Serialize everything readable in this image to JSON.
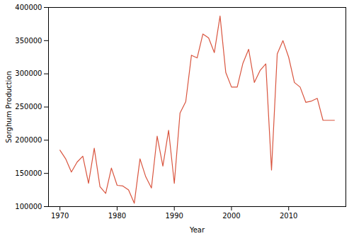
{
  "chart_data": {
    "type": "line",
    "x_label": "Year",
    "y_label": "Sorghum Production",
    "x": [
      1970,
      1971,
      1972,
      1973,
      1974,
      1975,
      1976,
      1977,
      1978,
      1979,
      1980,
      1981,
      1982,
      1983,
      1984,
      1985,
      1986,
      1987,
      1988,
      1989,
      1990,
      1991,
      1992,
      1993,
      1994,
      1995,
      1996,
      1997,
      1998,
      1999,
      2000,
      2001,
      2002,
      2003,
      2004,
      2005,
      2006,
      2007,
      2008,
      2009,
      2010,
      2011,
      2012,
      2013,
      2014,
      2015,
      2016,
      2017,
      2018
    ],
    "values": [
      185000,
      172000,
      152000,
      167000,
      176000,
      135000,
      188000,
      130000,
      120000,
      158000,
      132000,
      131000,
      125000,
      105000,
      172000,
      145000,
      128000,
      206000,
      161000,
      215000,
      135000,
      241000,
      258000,
      328000,
      324000,
      360000,
      354000,
      332000,
      387000,
      302000,
      280000,
      280000,
      316000,
      337000,
      287000,
      305000,
      315000,
      155000,
      330000,
      350000,
      325000,
      287000,
      280000,
      257000,
      259000,
      263000,
      230000,
      230000,
      230000
    ],
    "color": "#d9553f",
    "xlim": [
      1968,
      2020
    ],
    "xticks": [
      1970,
      1980,
      1990,
      2000,
      2010
    ],
    "ylim": [
      100000,
      400000
    ],
    "yticks": [
      100000,
      150000,
      200000,
      250000,
      300000,
      350000,
      400000
    ],
    "grid": false
  }
}
